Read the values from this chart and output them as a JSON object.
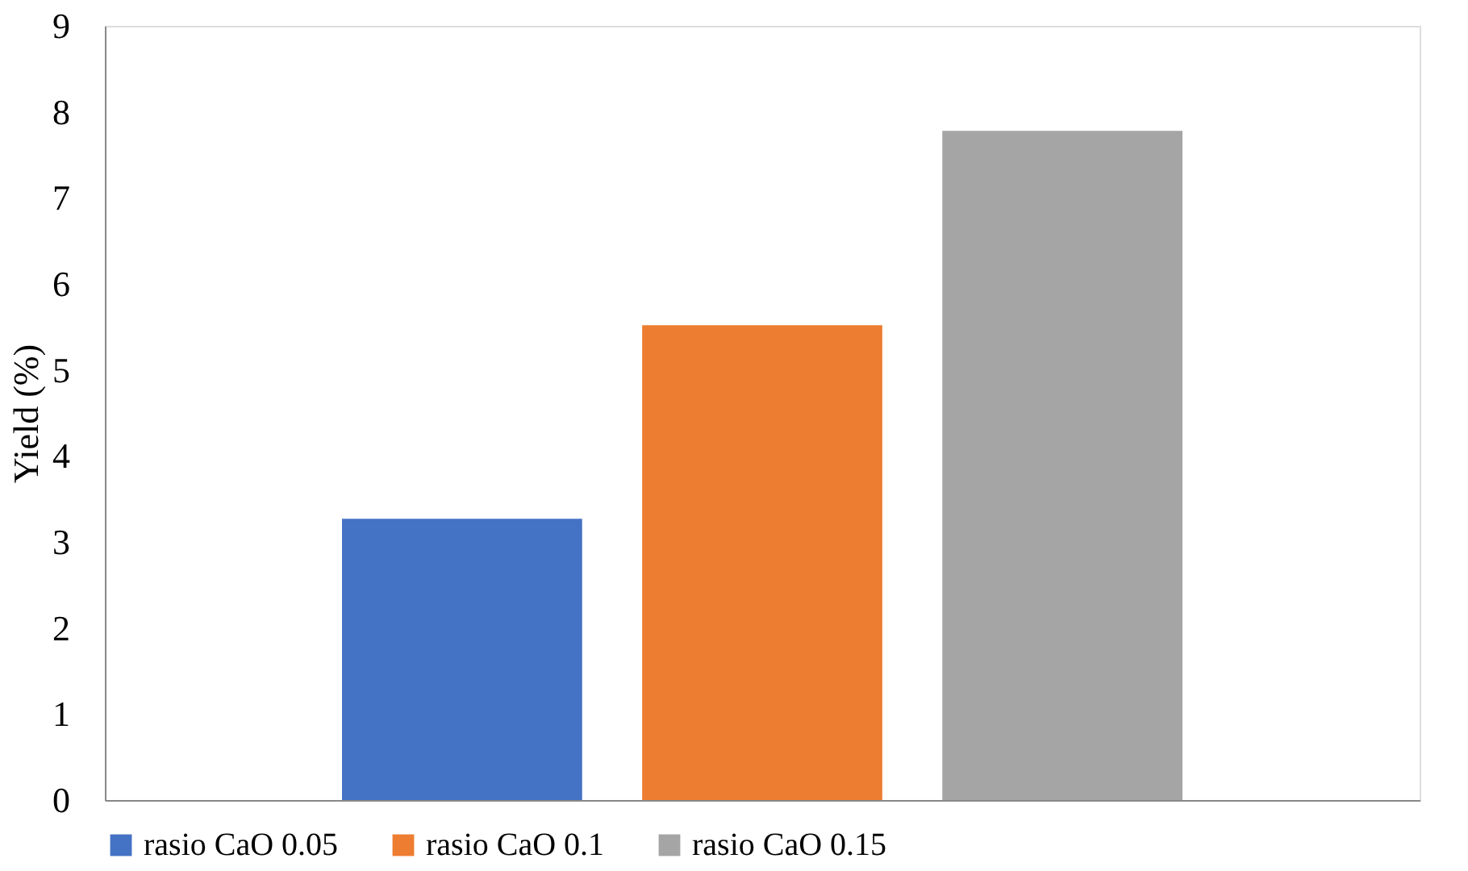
{
  "chart_data": {
    "type": "bar",
    "ylabel": "Yield (%)",
    "categories": [
      null
    ],
    "series": [
      {
        "name": "rasio CaO 0.05",
        "color": "#4472c4",
        "values": [
          3.27
        ]
      },
      {
        "name": "rasio CaO 0.1",
        "color": "#ed7d31",
        "values": [
          5.52
        ]
      },
      {
        "name": "rasio CaO 0.15",
        "color": "#a5a5a5",
        "values": [
          7.78
        ]
      }
    ],
    "ylim": [
      0,
      9
    ],
    "yticks": [
      0,
      1,
      2,
      3,
      4,
      5,
      6,
      7,
      8,
      9
    ],
    "grid": false,
    "legend": "bottom",
    "tick_labels": "y"
  }
}
